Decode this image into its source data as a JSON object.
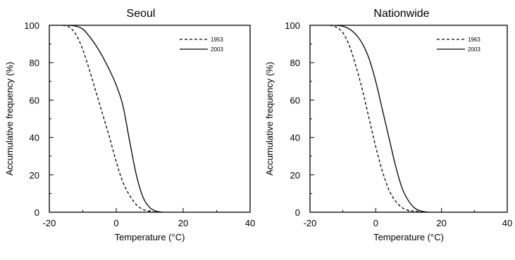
{
  "chart_data": [
    {
      "type": "line",
      "title": "Seoul",
      "xlabel": "Temperature (°C)",
      "ylabel": "Accumulative frequency (%)",
      "xlim": [
        -20,
        40
      ],
      "ylim": [
        0,
        100
      ],
      "xticks": [
        "-20",
        "0",
        "20",
        "40"
      ],
      "yticks": [
        "0",
        "20",
        "40",
        "60",
        "80",
        "100"
      ],
      "grid": false,
      "legend_position": "top-right",
      "series": [
        {
          "name": "1953",
          "style": "dashed",
          "x": [
            -16,
            -14,
            -12,
            -10,
            -8,
            -6,
            -4,
            -2,
            0,
            2,
            4,
            6,
            8,
            10,
            12
          ],
          "y": [
            100,
            99,
            95,
            87,
            76,
            64,
            52,
            40,
            27,
            16,
            9,
            4,
            1.5,
            0.5,
            0
          ]
        },
        {
          "name": "2003",
          "style": "solid",
          "x": [
            -14,
            -12,
            -10,
            -8,
            -6,
            -4,
            -2,
            0,
            2,
            4,
            6,
            8,
            10,
            12,
            14
          ],
          "y": [
            100,
            99.5,
            98,
            94,
            89,
            83,
            76,
            68,
            57,
            38,
            20,
            8,
            2.5,
            0.5,
            0
          ]
        }
      ]
    },
    {
      "type": "line",
      "title": "Nationwide",
      "xlabel": "Temperature (°C)",
      "ylabel": "Accumulative frequency (%)",
      "xlim": [
        -20,
        40
      ],
      "ylim": [
        0,
        100
      ],
      "xticks": [
        "-20",
        "0",
        "20",
        "40"
      ],
      "yticks": [
        "0",
        "20",
        "40",
        "60",
        "80",
        "100"
      ],
      "grid": false,
      "legend_position": "top-right",
      "series": [
        {
          "name": "1963",
          "style": "dashed",
          "x": [
            -14,
            -12,
            -10,
            -8,
            -6,
            -4,
            -2,
            0,
            2,
            4,
            6,
            8,
            10,
            12,
            14
          ],
          "y": [
            100,
            99,
            96,
            89,
            78,
            65,
            50,
            35,
            22,
            12,
            6,
            2.5,
            1,
            0.5,
            0
          ]
        },
        {
          "name": "2003",
          "style": "solid",
          "x": [
            -12,
            -10,
            -8,
            -6,
            -4,
            -2,
            0,
            2,
            4,
            6,
            8,
            10,
            12,
            14,
            16
          ],
          "y": [
            100,
            99.5,
            98,
            95,
            90,
            82,
            70,
            55,
            40,
            25,
            13,
            6,
            2,
            0.5,
            0
          ]
        }
      ]
    }
  ]
}
